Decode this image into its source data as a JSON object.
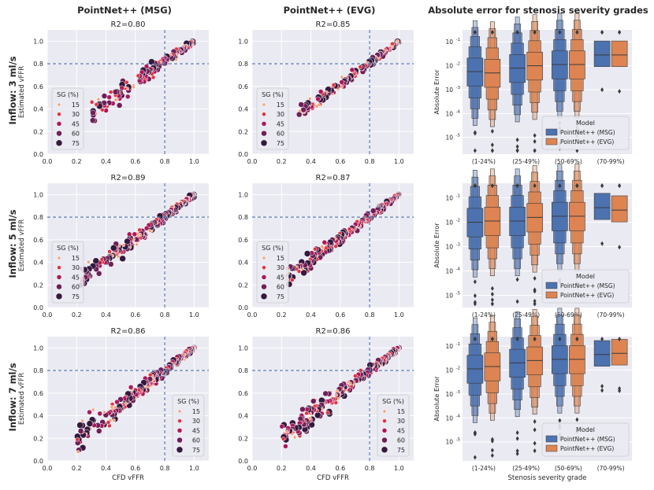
{
  "headers": {
    "col1": "PointNet++ (MSG)",
    "col2": "PointNet++ (EVG)",
    "col3": "Absolute error for stenosis severity grades",
    "rows": [
      "Inflow: 3 ml/s",
      "Inflow: 5 ml/s",
      "Inflow: 7 ml/s"
    ]
  },
  "labels": {
    "scatter_xlabel": "CFD vFFR",
    "scatter_ylabel": "Estimated vFFR",
    "box_xlabel": "Stenosis severity grade",
    "box_ylabel": "Absolute Error",
    "legend_sg_title": "SG (%)",
    "legend_model_title": "Model"
  },
  "colors": {
    "panel_bg": "#eaeaf2",
    "grid": "#ffffff",
    "threshold_line": "#4c72b0",
    "msg": "#4c72b0",
    "evg": "#dd8452",
    "sg_15": "#f69c73",
    "sg_30": "#e13342",
    "sg_45": "#ad1759",
    "sg_60": "#701f57",
    "sg_75": "#35193e"
  },
  "chart_data": [
    {
      "type": "scatter",
      "panel": "MSG-3",
      "title": "R2=0.80",
      "xlim": [
        0,
        1.1
      ],
      "ylim": [
        0,
        1.1
      ],
      "x_ticks": [
        "0.0",
        "0.2",
        "0.4",
        "0.6",
        "0.8",
        "1.0"
      ],
      "y_ticks": [
        "0.0",
        "0.2",
        "0.4",
        "0.6",
        "0.8",
        "1.0"
      ],
      "threshold": 0.8,
      "show_ylabel": true,
      "show_xlabel": false,
      "legend": {
        "title": "SG (%)",
        "entries": [
          "15",
          "30",
          "45",
          "60",
          "75"
        ],
        "placement": "lower-left"
      },
      "sim": {
        "seed": 11,
        "n": 180,
        "xmin": 0.3,
        "noise": 0.1,
        "bias": 0.08,
        "spread": 0.9
      }
    },
    {
      "type": "scatter",
      "panel": "EVG-3",
      "title": "R2=0.85",
      "xlim": [
        0,
        1.1
      ],
      "ylim": [
        0,
        1.1
      ],
      "x_ticks": [
        "0.0",
        "0.2",
        "0.4",
        "0.6",
        "0.8",
        "1.0"
      ],
      "y_ticks": [
        "0.0",
        "0.2",
        "0.4",
        "0.6",
        "0.8",
        "1.0"
      ],
      "threshold": 0.8,
      "show_ylabel": false,
      "show_xlabel": false,
      "legend": {
        "title": "SG (%)",
        "entries": [
          "15",
          "30",
          "45",
          "60",
          "75"
        ],
        "placement": "lower-left"
      },
      "sim": {
        "seed": 12,
        "n": 180,
        "xmin": 0.3,
        "noise": 0.07,
        "bias": 0.04,
        "spread": 0.95
      }
    },
    {
      "type": "box",
      "panel": "err-3",
      "categories": [
        "(1-24%)",
        "(25-49%)",
        "(50-69%)",
        "(70-99%)"
      ],
      "ylim_log": [
        -5.7,
        -0.5
      ],
      "y_ticks": [
        -1,
        -2,
        -3,
        -4,
        -5
      ],
      "y_tick_labels": [
        "10",
        "10",
        "10",
        "10",
        "10"
      ],
      "y_tick_exps": [
        "-1",
        "-2",
        "-3",
        "-4",
        "-5"
      ],
      "medians": {
        "msg": [
          -2.25,
          -2.1,
          -1.95,
          -1.55
        ],
        "evg": [
          -2.3,
          -2.0,
          -1.95,
          -1.55
        ]
      },
      "legend": {
        "title": "Model",
        "entries": [
          "PointNet++ (MSG)",
          "PointNet++ (EVG)"
        ],
        "placement": "lower-right"
      },
      "show_xlabel": false
    },
    {
      "type": "scatter",
      "panel": "MSG-5",
      "title": "R2=0.89",
      "xlim": [
        0,
        1.1
      ],
      "ylim": [
        0,
        1.1
      ],
      "x_ticks": [
        "0.0",
        "0.2",
        "0.4",
        "0.6",
        "0.8",
        "1.0"
      ],
      "y_ticks": [
        "0.0",
        "0.2",
        "0.4",
        "0.6",
        "0.8",
        "1.0"
      ],
      "threshold": 0.8,
      "show_ylabel": true,
      "show_xlabel": false,
      "legend": {
        "title": "SG (%)",
        "entries": [
          "15",
          "30",
          "45",
          "60",
          "75"
        ],
        "placement": "lower-left"
      },
      "sim": {
        "seed": 21,
        "n": 260,
        "xmin": 0.2,
        "noise": 0.08,
        "bias": 0.02,
        "spread": 1.0
      }
    },
    {
      "type": "scatter",
      "panel": "EVG-5",
      "title": "R2=0.87",
      "xlim": [
        0,
        1.1
      ],
      "ylim": [
        0,
        1.1
      ],
      "x_ticks": [
        "0.0",
        "0.2",
        "0.4",
        "0.6",
        "0.8",
        "1.0"
      ],
      "y_ticks": [
        "0.0",
        "0.2",
        "0.4",
        "0.6",
        "0.8",
        "1.0"
      ],
      "threshold": 0.8,
      "show_ylabel": false,
      "show_xlabel": false,
      "legend": {
        "title": "SG (%)",
        "entries": [
          "15",
          "30",
          "45",
          "60",
          "75"
        ],
        "placement": "lower-left"
      },
      "sim": {
        "seed": 22,
        "n": 260,
        "xmin": 0.22,
        "noise": 0.08,
        "bias": 0.03,
        "spread": 1.0
      }
    },
    {
      "type": "box",
      "panel": "err-5",
      "categories": [
        "(1-24%)",
        "(25-49%)",
        "(50-69%)",
        "(70-99%)"
      ],
      "ylim_log": [
        -5.5,
        -0.4
      ],
      "y_ticks": [
        -1,
        -2,
        -3,
        -4,
        -5
      ],
      "y_tick_labels": [
        "10",
        "10",
        "10",
        "10",
        "10"
      ],
      "y_tick_exps": [
        "-1",
        "-2",
        "-3",
        "-4",
        "-5"
      ],
      "medians": {
        "msg": [
          -2.0,
          -1.95,
          -1.75,
          -1.4
        ],
        "evg": [
          -1.95,
          -1.8,
          -1.75,
          -1.5
        ]
      },
      "legend": {
        "title": "Model",
        "entries": [
          "PointNet++ (MSG)",
          "PointNet++ (EVG)"
        ],
        "placement": "lower-right"
      },
      "show_xlabel": false
    },
    {
      "type": "scatter",
      "panel": "MSG-7",
      "title": "R2=0.86",
      "xlim": [
        0,
        1.1
      ],
      "ylim": [
        0,
        1.1
      ],
      "x_ticks": [
        "0.0",
        "0.2",
        "0.4",
        "0.6",
        "0.8",
        "1.0"
      ],
      "y_ticks": [
        "0.0",
        "0.2",
        "0.4",
        "0.6",
        "0.8",
        "1.0"
      ],
      "threshold": 0.8,
      "show_ylabel": true,
      "show_xlabel": true,
      "legend": {
        "title": "SG (%)",
        "entries": [
          "15",
          "30",
          "45",
          "60",
          "75"
        ],
        "placement": "lower-right"
      },
      "sim": {
        "seed": 31,
        "n": 300,
        "xmin": 0.2,
        "noise": 0.1,
        "bias": 0.0,
        "spread": 1.0
      }
    },
    {
      "type": "scatter",
      "panel": "EVG-7",
      "title": "R2=0.86",
      "xlim": [
        0,
        1.1
      ],
      "ylim": [
        0,
        1.1
      ],
      "x_ticks": [
        "0.0",
        "0.2",
        "0.4",
        "0.6",
        "0.8",
        "1.0"
      ],
      "y_ticks": [
        "0.0",
        "0.2",
        "0.4",
        "0.6",
        "0.8",
        "1.0"
      ],
      "threshold": 0.8,
      "show_ylabel": false,
      "show_xlabel": true,
      "legend": {
        "title": "SG (%)",
        "entries": [
          "15",
          "30",
          "45",
          "60",
          "75"
        ],
        "placement": "lower-right"
      },
      "sim": {
        "seed": 32,
        "n": 300,
        "xmin": 0.2,
        "noise": 0.1,
        "bias": 0.0,
        "spread": 1.0
      }
    },
    {
      "type": "box",
      "panel": "err-7",
      "categories": [
        "(1-24%)",
        "(25-49%)",
        "(50-69%)",
        "(70-99%)"
      ],
      "ylim_log": [
        -5.8,
        -0.6
      ],
      "y_ticks": [
        -1,
        -2,
        -3,
        -4,
        -5
      ],
      "y_tick_labels": [
        "10",
        "10",
        "10",
        "10",
        "10"
      ],
      "y_tick_exps": [
        "-1",
        "-2",
        "-3",
        "-4",
        "-5"
      ],
      "medians": {
        "msg": [
          -1.95,
          -1.7,
          -1.55,
          -1.35
        ],
        "evg": [
          -1.85,
          -1.6,
          -1.55,
          -1.3
        ]
      },
      "legend": {
        "title": "Model",
        "entries": [
          "PointNet++ (MSG)",
          "PointNet++ (EVG)"
        ],
        "placement": "lower-right"
      },
      "show_xlabel": true
    }
  ]
}
